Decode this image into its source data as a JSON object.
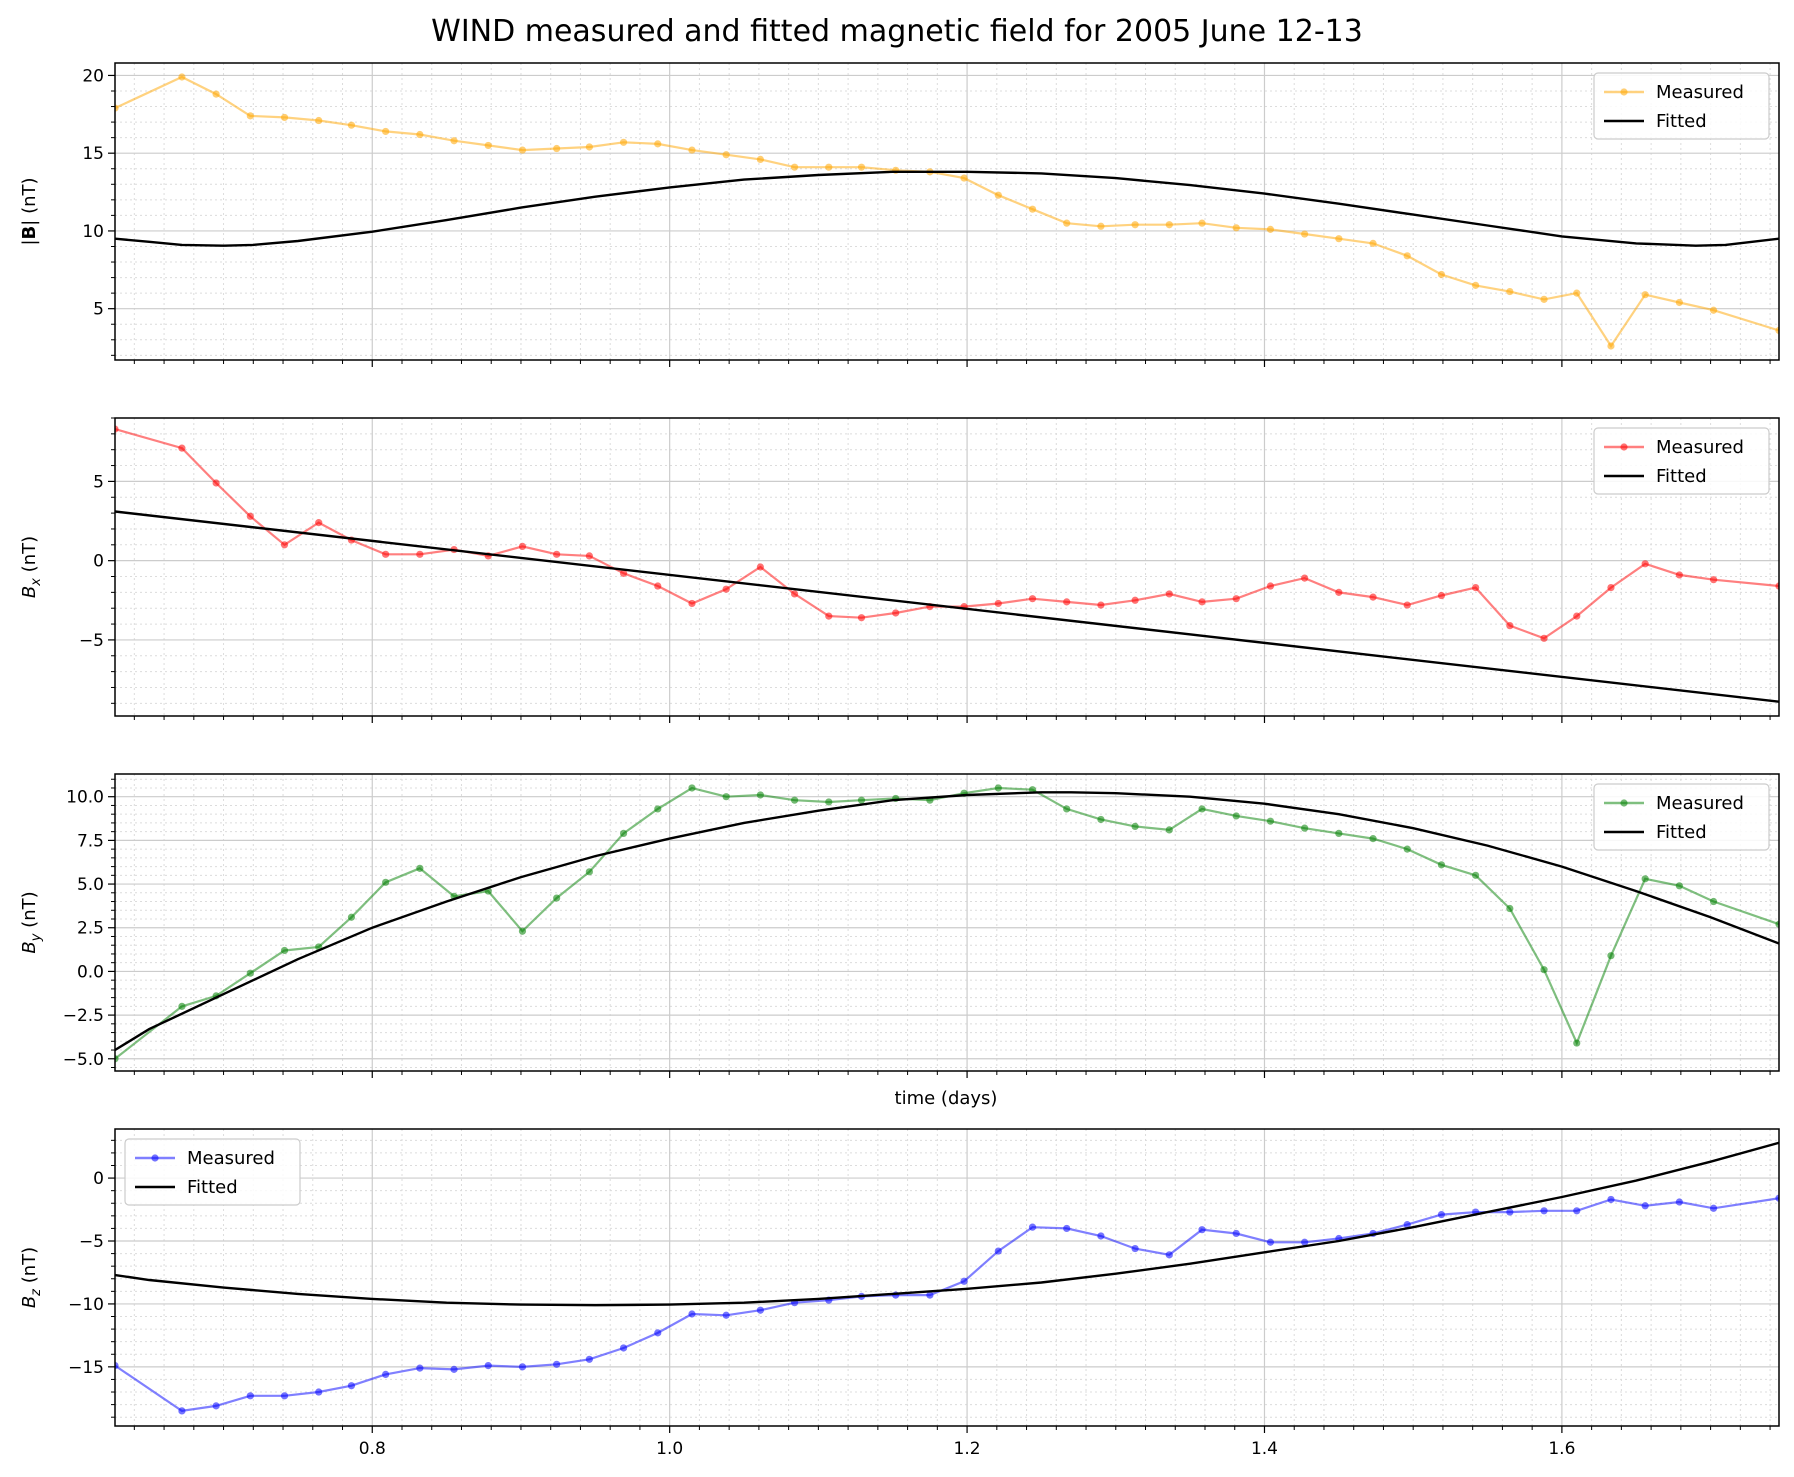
{
  "title": "WIND measured and fitted magnetic field for 2005 June 12-13",
  "xlabel": "time (days)",
  "xlim": [
    0.627,
    1.746
  ],
  "xticks": [
    0.8,
    1.0,
    1.2,
    1.4,
    1.6
  ],
  "xtick_labels": [
    "0.8",
    "1.0",
    "1.2",
    "1.4",
    "1.6"
  ],
  "colors": {
    "Bmag": "#ffa500",
    "Bx": "#ff0000",
    "By": "#008000",
    "Bz": "#0000ff",
    "fitted": "#000000",
    "grid": "#cccccc"
  },
  "chart_data": [
    {
      "type": "line",
      "id": "Bmag",
      "ylabel_main": "|",
      "ylabel_bold": "B",
      "ylabel_tail": "| (nT)",
      "ylim": [
        1.7,
        20.8
      ],
      "yticks": [
        5,
        10,
        15,
        20
      ],
      "ytick_labels": [
        "5",
        "10",
        "15",
        "20"
      ],
      "legend_position": "top-right",
      "series": [
        {
          "name": "Measured",
          "style": "line-with-markers",
          "color": "#ffa500",
          "x": [
            0.627,
            0.672,
            0.695,
            0.718,
            0.741,
            0.764,
            0.786,
            0.809,
            0.832,
            0.855,
            0.878,
            0.901,
            0.924,
            0.946,
            0.969,
            0.992,
            1.015,
            1.038,
            1.061,
            1.084,
            1.107,
            1.129,
            1.152,
            1.175,
            1.198,
            1.221,
            1.244,
            1.267,
            1.29,
            1.313,
            1.336,
            1.358,
            1.381,
            1.404,
            1.427,
            1.45,
            1.473,
            1.496,
            1.519,
            1.542,
            1.565,
            1.588,
            1.61,
            1.633,
            1.656,
            1.679,
            1.702,
            1.746
          ],
          "y": [
            17.9,
            19.9,
            18.8,
            17.4,
            17.3,
            17.1,
            16.8,
            16.4,
            16.2,
            15.8,
            15.5,
            15.2,
            15.3,
            15.4,
            15.7,
            15.6,
            15.2,
            14.9,
            14.6,
            14.1,
            14.1,
            14.1,
            13.9,
            13.8,
            13.4,
            12.3,
            11.4,
            10.5,
            10.3,
            10.4,
            10.4,
            10.5,
            10.2,
            10.1,
            9.8,
            9.5,
            9.2,
            8.4,
            7.2,
            6.5,
            6.1,
            5.6,
            6.0,
            2.6,
            5.9,
            5.4,
            4.9,
            3.6
          ]
        },
        {
          "name": "Fitted",
          "style": "line",
          "color": "#000000",
          "x": [
            0.627,
            0.65,
            0.672,
            0.7,
            0.72,
            0.75,
            0.8,
            0.85,
            0.9,
            0.95,
            1.0,
            1.05,
            1.1,
            1.15,
            1.2,
            1.25,
            1.3,
            1.35,
            1.4,
            1.45,
            1.5,
            1.55,
            1.6,
            1.65,
            1.69,
            1.71,
            1.746
          ],
          "y": [
            9.5,
            9.3,
            9.1,
            9.05,
            9.1,
            9.35,
            9.95,
            10.7,
            11.5,
            12.2,
            12.8,
            13.3,
            13.6,
            13.8,
            13.8,
            13.7,
            13.4,
            12.95,
            12.4,
            11.75,
            11.05,
            10.35,
            9.65,
            9.2,
            9.05,
            9.1,
            9.5
          ]
        }
      ]
    },
    {
      "type": "line",
      "id": "Bx",
      "ylabel_main": "B",
      "ylabel_sub": "x",
      "ylabel_tail": " (nT)",
      "ylim": [
        -9.8,
        9.0
      ],
      "yticks": [
        -5,
        0,
        5
      ],
      "ytick_labels": [
        "−5",
        "0",
        "5"
      ],
      "legend_position": "top-right",
      "series": [
        {
          "name": "Measured",
          "style": "line-with-markers",
          "color": "#ff0000",
          "x": [
            0.627,
            0.672,
            0.695,
            0.718,
            0.741,
            0.764,
            0.786,
            0.809,
            0.832,
            0.855,
            0.878,
            0.901,
            0.924,
            0.946,
            0.969,
            0.992,
            1.015,
            1.038,
            1.061,
            1.084,
            1.107,
            1.129,
            1.152,
            1.175,
            1.198,
            1.221,
            1.244,
            1.267,
            1.29,
            1.313,
            1.336,
            1.358,
            1.381,
            1.404,
            1.427,
            1.45,
            1.473,
            1.496,
            1.519,
            1.542,
            1.565,
            1.588,
            1.61,
            1.633,
            1.656,
            1.679,
            1.702,
            1.746
          ],
          "y": [
            8.3,
            7.1,
            4.9,
            2.8,
            1.0,
            2.4,
            1.3,
            0.4,
            0.4,
            0.7,
            0.3,
            0.9,
            0.4,
            0.3,
            -0.8,
            -1.6,
            -2.7,
            -1.8,
            -0.4,
            -2.1,
            -3.5,
            -3.6,
            -3.3,
            -2.9,
            -2.9,
            -2.7,
            -2.4,
            -2.6,
            -2.8,
            -2.5,
            -2.1,
            -2.6,
            -2.4,
            -1.6,
            -1.1,
            -2.0,
            -2.3,
            -2.8,
            -2.2,
            -1.7,
            -4.1,
            -4.9,
            -3.5,
            -1.7,
            -0.2,
            -0.9,
            -1.2,
            -1.6
          ]
        },
        {
          "name": "Fitted",
          "style": "line",
          "color": "#000000",
          "x": [
            0.627,
            1.746
          ],
          "y": [
            3.1,
            -8.9
          ]
        }
      ]
    },
    {
      "type": "line",
      "id": "By",
      "ylabel_main": "B",
      "ylabel_sub": "y",
      "ylabel_tail": " (nT)",
      "ylim": [
        -5.7,
        11.3
      ],
      "yticks": [
        -5.0,
        -2.5,
        0.0,
        2.5,
        5.0,
        7.5,
        10.0
      ],
      "ytick_labels": [
        "−5.0",
        "−2.5",
        "0.0",
        "2.5",
        "5.0",
        "7.5",
        "10.0"
      ],
      "legend_position": "top-right",
      "series": [
        {
          "name": "Measured",
          "style": "line-with-markers",
          "color": "#008000",
          "x": [
            0.627,
            0.672,
            0.695,
            0.718,
            0.741,
            0.764,
            0.786,
            0.809,
            0.832,
            0.855,
            0.878,
            0.901,
            0.924,
            0.946,
            0.969,
            0.992,
            1.015,
            1.038,
            1.061,
            1.084,
            1.107,
            1.129,
            1.152,
            1.175,
            1.198,
            1.221,
            1.244,
            1.267,
            1.29,
            1.313,
            1.336,
            1.358,
            1.381,
            1.404,
            1.427,
            1.45,
            1.473,
            1.496,
            1.519,
            1.542,
            1.565,
            1.588,
            1.61,
            1.633,
            1.656,
            1.679,
            1.702,
            1.746
          ],
          "y": [
            -5.0,
            -2.0,
            -1.4,
            -0.1,
            1.2,
            1.4,
            3.1,
            5.1,
            5.9,
            4.3,
            4.6,
            2.3,
            4.2,
            5.7,
            7.9,
            9.3,
            10.5,
            10.0,
            10.1,
            9.8,
            9.7,
            9.8,
            9.9,
            9.8,
            10.2,
            10.5,
            10.4,
            9.3,
            8.7,
            8.3,
            8.1,
            9.3,
            8.9,
            8.6,
            8.2,
            7.9,
            7.6,
            7.0,
            6.1,
            5.5,
            3.6,
            0.1,
            -4.1,
            0.9,
            5.3,
            4.9,
            4.0,
            2.7
          ]
        },
        {
          "name": "Fitted",
          "style": "line",
          "color": "#000000",
          "x": [
            0.627,
            0.65,
            0.7,
            0.75,
            0.8,
            0.85,
            0.9,
            0.95,
            1.0,
            1.05,
            1.1,
            1.15,
            1.2,
            1.25,
            1.27,
            1.3,
            1.35,
            1.4,
            1.45,
            1.5,
            1.55,
            1.6,
            1.65,
            1.7,
            1.746
          ],
          "y": [
            -4.5,
            -3.3,
            -1.3,
            0.7,
            2.5,
            4.0,
            5.4,
            6.6,
            7.6,
            8.5,
            9.2,
            9.8,
            10.1,
            10.25,
            10.25,
            10.2,
            10.0,
            9.6,
            9.0,
            8.2,
            7.2,
            6.0,
            4.6,
            3.1,
            1.6
          ]
        }
      ]
    },
    {
      "type": "line",
      "id": "Bz",
      "ylabel_main": "B",
      "ylabel_sub": "z",
      "ylabel_tail": " (nT)",
      "ylim": [
        -19.7,
        3.9
      ],
      "yticks": [
        -15,
        -10,
        -5,
        0
      ],
      "ytick_labels": [
        "−15",
        "−10",
        "−5",
        "0"
      ],
      "legend_position": "top-left",
      "series": [
        {
          "name": "Measured",
          "style": "line-with-markers",
          "color": "#0000ff",
          "x": [
            0.627,
            0.672,
            0.695,
            0.718,
            0.741,
            0.764,
            0.786,
            0.809,
            0.832,
            0.855,
            0.878,
            0.901,
            0.924,
            0.946,
            0.969,
            0.992,
            1.015,
            1.038,
            1.061,
            1.084,
            1.107,
            1.129,
            1.152,
            1.175,
            1.198,
            1.221,
            1.244,
            1.267,
            1.29,
            1.313,
            1.336,
            1.358,
            1.381,
            1.404,
            1.427,
            1.45,
            1.473,
            1.496,
            1.519,
            1.542,
            1.565,
            1.588,
            1.61,
            1.633,
            1.656,
            1.679,
            1.702,
            1.746
          ],
          "y": [
            -14.9,
            -18.5,
            -18.1,
            -17.3,
            -17.3,
            -17.0,
            -16.5,
            -15.6,
            -15.1,
            -15.2,
            -14.9,
            -15.0,
            -14.8,
            -14.4,
            -13.5,
            -12.3,
            -10.8,
            -10.9,
            -10.5,
            -9.9,
            -9.7,
            -9.4,
            -9.3,
            -9.3,
            -8.2,
            -5.8,
            -3.9,
            -4.0,
            -4.6,
            -5.6,
            -6.1,
            -4.1,
            -4.4,
            -5.1,
            -5.1,
            -4.8,
            -4.4,
            -3.7,
            -2.9,
            -2.7,
            -2.7,
            -2.6,
            -2.6,
            -1.7,
            -2.2,
            -1.9,
            -2.4,
            -1.6
          ]
        },
        {
          "name": "Fitted",
          "style": "line",
          "color": "#000000",
          "x": [
            0.627,
            0.65,
            0.7,
            0.75,
            0.8,
            0.85,
            0.9,
            0.95,
            1.0,
            1.05,
            1.1,
            1.15,
            1.2,
            1.25,
            1.3,
            1.35,
            1.4,
            1.45,
            1.5,
            1.55,
            1.6,
            1.65,
            1.7,
            1.746
          ],
          "y": [
            -7.7,
            -8.1,
            -8.7,
            -9.2,
            -9.6,
            -9.9,
            -10.05,
            -10.1,
            -10.05,
            -9.9,
            -9.6,
            -9.2,
            -8.8,
            -8.3,
            -7.6,
            -6.8,
            -5.9,
            -5.0,
            -3.9,
            -2.7,
            -1.5,
            -0.2,
            1.3,
            2.8
          ]
        }
      ]
    }
  ]
}
